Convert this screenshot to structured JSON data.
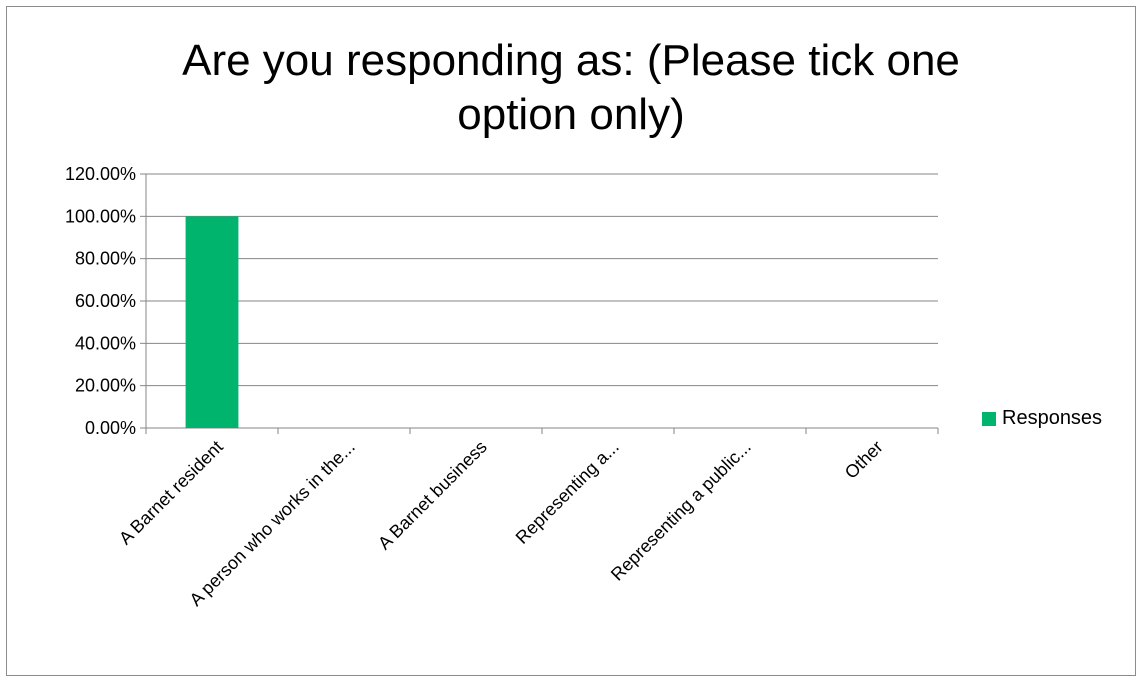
{
  "chart_data": {
    "type": "bar",
    "title": "Are you responding as: (Please tick one option only)",
    "title_lines": [
      "Are you responding as: (Please tick one",
      "option only)"
    ],
    "categories": [
      "A Barnet resident",
      "A person who works in the...",
      "A Barnet business",
      "Representing a...",
      "Representing a public...",
      "Other"
    ],
    "series": [
      {
        "name": "Responses",
        "values": [
          100,
          0,
          0,
          0,
          0,
          0
        ]
      }
    ],
    "ylim": [
      0,
      120
    ],
    "yticks": [
      0,
      20,
      40,
      60,
      80,
      100,
      120
    ],
    "ytick_labels": [
      "0.00%",
      "20.00%",
      "40.00%",
      "60.00%",
      "80.00%",
      "100.00%",
      "120.00%"
    ],
    "grid": true,
    "legend": "right",
    "colors": {
      "bar": "#00b46e",
      "grid": "#868686",
      "axis": "#868686"
    }
  }
}
